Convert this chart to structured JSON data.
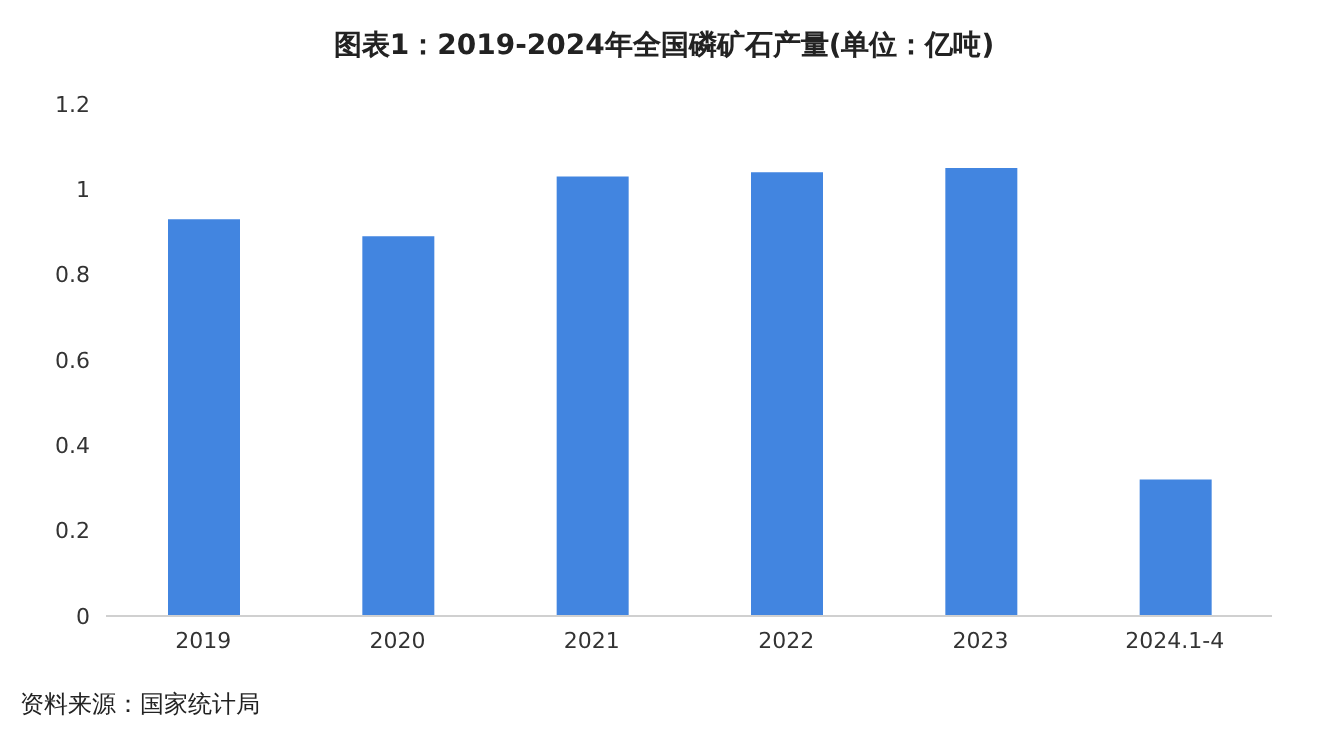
{
  "chart_data": {
    "type": "bar",
    "title": "图表1：2019-2024年全国磷矿石产量(单位：亿吨)",
    "categories": [
      "2019",
      "2020",
      "2021",
      "2022",
      "2023",
      "2024.1-4"
    ],
    "values": [
      0.93,
      0.89,
      1.03,
      1.04,
      1.05,
      0.32
    ],
    "color": "#4285e0",
    "ylim": [
      0,
      1.2
    ],
    "yticks": [
      0,
      0.2,
      0.4,
      0.6,
      0.8,
      1,
      1.2
    ],
    "grid": false,
    "annotations": [
      "资料来源：国家统计局"
    ]
  }
}
